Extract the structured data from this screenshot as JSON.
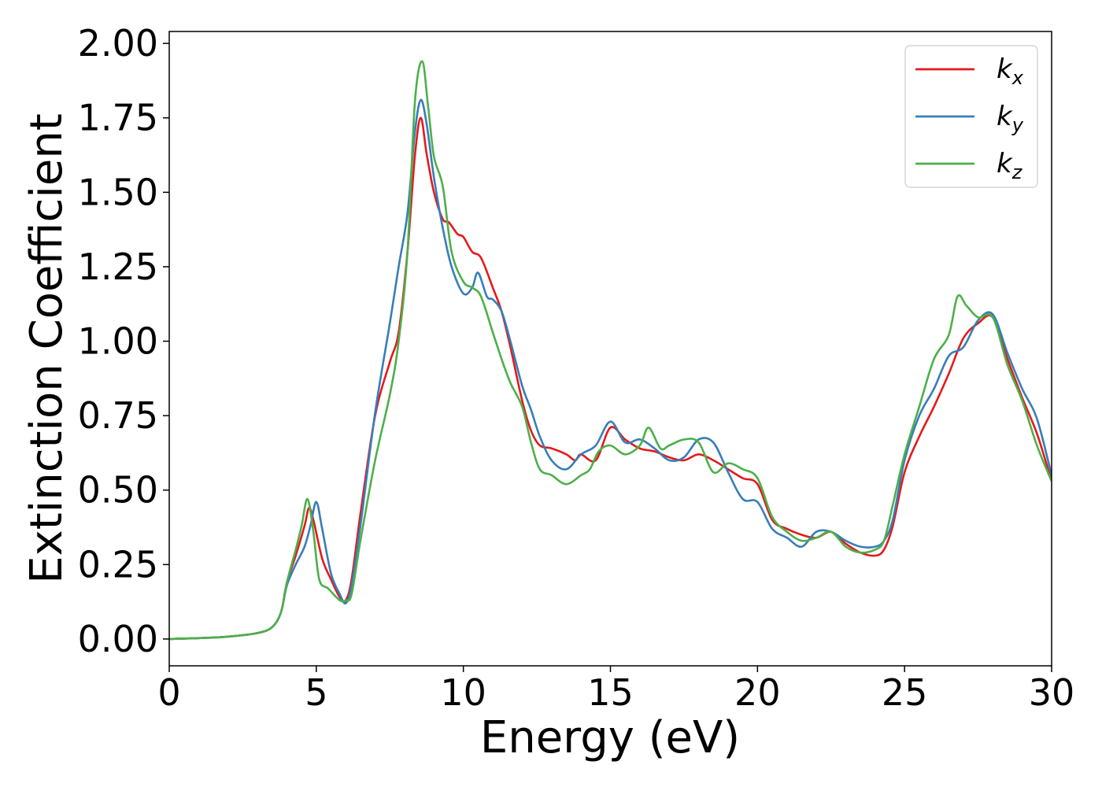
{
  "chart_data": {
    "type": "line",
    "title": "",
    "xlabel": "Energy (eV)",
    "ylabel": "Extinction Coefficient",
    "xlim": [
      0,
      30
    ],
    "ylim": [
      -0.09,
      2.04
    ],
    "xticks": [
      0,
      5,
      10,
      15,
      20,
      25,
      30
    ],
    "xtick_labels": [
      "0",
      "5",
      "10",
      "15",
      "20",
      "25",
      "30"
    ],
    "yticks": [
      0,
      0.25,
      0.5,
      0.75,
      1.0,
      1.25,
      1.5,
      1.75,
      2.0
    ],
    "ytick_labels": [
      "0.00",
      "0.25",
      "0.50",
      "0.75",
      "1.00",
      "1.25",
      "1.50",
      "1.75",
      "2.00"
    ],
    "grid": false,
    "legend_position": "top-right",
    "legend": [
      {
        "base": "k",
        "sub": "x"
      },
      {
        "base": "k",
        "sub": "y"
      },
      {
        "base": "k",
        "sub": "z"
      }
    ],
    "colors": {
      "kx": "#e41a1c",
      "ky": "#377eb8",
      "kz": "#4daf4a"
    },
    "series": [
      {
        "name": "kx",
        "x": [
          0,
          1,
          2,
          3,
          3.5,
          3.8,
          4.0,
          4.3,
          4.6,
          4.75,
          4.9,
          5.2,
          5.5,
          5.8,
          6.0,
          6.2,
          6.5,
          7.0,
          7.5,
          7.8,
          8.1,
          8.35,
          8.55,
          8.75,
          9.0,
          9.3,
          9.5,
          9.8,
          10.0,
          10.3,
          10.6,
          11.0,
          11.3,
          11.6,
          12.0,
          12.3,
          12.6,
          13.0,
          13.5,
          13.8,
          14.0,
          14.5,
          15.0,
          15.5,
          16.0,
          16.5,
          17.0,
          17.5,
          18.0,
          18.5,
          19.0,
          19.5,
          20.0,
          20.5,
          21.0,
          21.5,
          22.0,
          22.5,
          23.0,
          23.5,
          24.0,
          24.3,
          24.6,
          25.0,
          25.5,
          26.0,
          26.5,
          27.0,
          27.5,
          28.0,
          28.5,
          29.0,
          29.5,
          30.0
        ],
        "y": [
          0.0,
          0.003,
          0.008,
          0.02,
          0.04,
          0.09,
          0.19,
          0.28,
          0.38,
          0.44,
          0.4,
          0.27,
          0.2,
          0.14,
          0.13,
          0.2,
          0.42,
          0.75,
          0.93,
          1.03,
          1.3,
          1.62,
          1.75,
          1.63,
          1.5,
          1.41,
          1.4,
          1.36,
          1.35,
          1.3,
          1.28,
          1.18,
          1.1,
          0.98,
          0.8,
          0.7,
          0.65,
          0.64,
          0.62,
          0.6,
          0.62,
          0.6,
          0.71,
          0.67,
          0.64,
          0.63,
          0.61,
          0.6,
          0.62,
          0.6,
          0.57,
          0.54,
          0.52,
          0.4,
          0.37,
          0.35,
          0.34,
          0.36,
          0.32,
          0.29,
          0.28,
          0.3,
          0.38,
          0.56,
          0.68,
          0.78,
          0.89,
          1.01,
          1.06,
          1.08,
          0.94,
          0.81,
          0.69,
          0.53
        ]
      },
      {
        "name": "ky",
        "x": [
          0,
          1,
          2,
          3,
          3.5,
          3.8,
          4.0,
          4.3,
          4.6,
          4.8,
          5.0,
          5.2,
          5.5,
          5.8,
          6.0,
          6.2,
          6.5,
          7.0,
          7.5,
          7.8,
          8.1,
          8.35,
          8.55,
          8.75,
          9.0,
          9.3,
          9.6,
          10.0,
          10.3,
          10.5,
          10.8,
          11.0,
          11.3,
          11.6,
          12.0,
          12.3,
          12.6,
          13.0,
          13.5,
          14.0,
          14.5,
          15.0,
          15.5,
          16.0,
          16.5,
          17.0,
          17.5,
          18.0,
          18.5,
          19.0,
          19.5,
          20.0,
          20.5,
          21.0,
          21.5,
          22.0,
          22.5,
          23.0,
          23.5,
          24.0,
          24.3,
          24.6,
          25.0,
          25.5,
          26.0,
          26.5,
          27.0,
          27.5,
          28.0,
          28.5,
          29.0,
          29.5,
          30.0
        ],
        "y": [
          0.0,
          0.003,
          0.008,
          0.02,
          0.04,
          0.09,
          0.18,
          0.25,
          0.31,
          0.38,
          0.46,
          0.37,
          0.22,
          0.15,
          0.12,
          0.18,
          0.38,
          0.76,
          1.06,
          1.25,
          1.43,
          1.7,
          1.81,
          1.73,
          1.55,
          1.38,
          1.25,
          1.16,
          1.18,
          1.23,
          1.15,
          1.14,
          1.1,
          1.0,
          0.85,
          0.77,
          0.68,
          0.6,
          0.57,
          0.62,
          0.65,
          0.73,
          0.66,
          0.67,
          0.64,
          0.6,
          0.61,
          0.67,
          0.66,
          0.56,
          0.47,
          0.46,
          0.37,
          0.34,
          0.31,
          0.36,
          0.36,
          0.33,
          0.31,
          0.31,
          0.33,
          0.4,
          0.6,
          0.75,
          0.84,
          0.95,
          0.98,
          1.07,
          1.09,
          0.96,
          0.84,
          0.74,
          0.55
        ]
      },
      {
        "name": "kz",
        "x": [
          0,
          1,
          2,
          3,
          3.5,
          3.8,
          4.0,
          4.3,
          4.5,
          4.7,
          4.9,
          5.1,
          5.4,
          5.8,
          6.0,
          6.2,
          6.5,
          7.0,
          7.5,
          7.8,
          8.1,
          8.35,
          8.6,
          8.8,
          9.0,
          9.3,
          9.6,
          10.0,
          10.3,
          10.6,
          11.0,
          11.3,
          11.6,
          12.0,
          12.3,
          12.6,
          13.0,
          13.5,
          14.0,
          14.3,
          14.6,
          15.0,
          15.5,
          16.0,
          16.3,
          16.7,
          17.0,
          17.5,
          18.0,
          18.5,
          19.0,
          19.5,
          20.0,
          20.5,
          21.0,
          21.5,
          22.0,
          22.5,
          23.0,
          23.5,
          24.0,
          24.3,
          24.6,
          25.0,
          25.5,
          26.0,
          26.5,
          26.8,
          27.1,
          27.5,
          28.0,
          28.5,
          29.0,
          29.5,
          30.0
        ],
        "y": [
          0.0,
          0.003,
          0.008,
          0.02,
          0.04,
          0.09,
          0.19,
          0.3,
          0.38,
          0.47,
          0.36,
          0.2,
          0.17,
          0.13,
          0.13,
          0.15,
          0.33,
          0.6,
          0.82,
          1.0,
          1.3,
          1.8,
          1.94,
          1.79,
          1.62,
          1.52,
          1.3,
          1.2,
          1.18,
          1.15,
          1.03,
          0.94,
          0.86,
          0.78,
          0.66,
          0.57,
          0.55,
          0.52,
          0.55,
          0.57,
          0.63,
          0.65,
          0.62,
          0.65,
          0.71,
          0.64,
          0.65,
          0.67,
          0.66,
          0.56,
          0.59,
          0.57,
          0.54,
          0.41,
          0.36,
          0.33,
          0.34,
          0.36,
          0.31,
          0.29,
          0.3,
          0.33,
          0.45,
          0.62,
          0.78,
          0.94,
          1.02,
          1.15,
          1.12,
          1.08,
          1.08,
          0.92,
          0.8,
          0.65,
          0.53
        ]
      }
    ]
  }
}
